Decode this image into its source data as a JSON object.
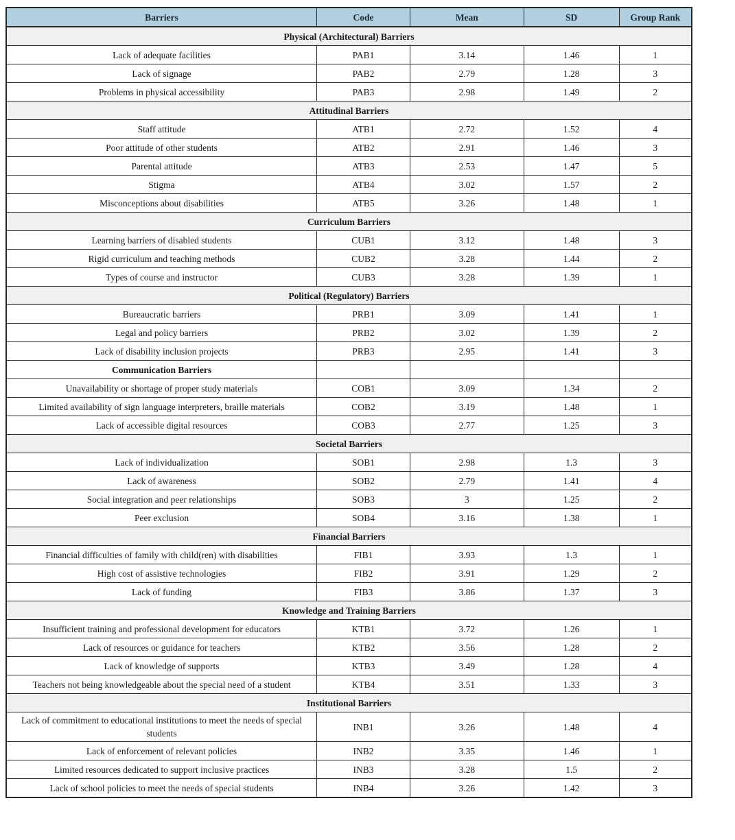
{
  "table": {
    "columns": [
      "Barriers",
      "Code",
      "Mean",
      "SD",
      "Group Rank"
    ],
    "colors": {
      "header_bg": "#b2cfe0",
      "header_text": "#1b2a38",
      "section_bg": "#f0f0ee",
      "border": "#262626",
      "body_text": "#1a1a1a"
    },
    "groups": [
      {
        "section": "Physical (Architectural) Barriers",
        "section_style": "banner",
        "rows": [
          {
            "barrier": "Lack of adequate facilities",
            "code": "PAB1",
            "mean": "3.14",
            "sd": "1.46",
            "rank": "1"
          },
          {
            "barrier": "Lack of signage",
            "code": "PAB2",
            "mean": "2.79",
            "sd": "1.28",
            "rank": "3"
          },
          {
            "barrier": "Problems in physical accessibility",
            "code": "PAB3",
            "mean": "2.98",
            "sd": "1.49",
            "rank": "2"
          }
        ]
      },
      {
        "section": "Attitudinal Barriers",
        "section_style": "banner",
        "rows": [
          {
            "barrier": "Staff attitude",
            "code": "ATB1",
            "mean": "2.72",
            "sd": "1.52",
            "rank": "4"
          },
          {
            "barrier": "Poor attitude of other students",
            "code": "ATB2",
            "mean": "2.91",
            "sd": "1.46",
            "rank": "3"
          },
          {
            "barrier": "Parental attitude",
            "code": "ATB3",
            "mean": "2.53",
            "sd": "1.47",
            "rank": "5"
          },
          {
            "barrier": "Stigma",
            "code": "ATB4",
            "mean": "3.02",
            "sd": "1.57",
            "rank": "2"
          },
          {
            "barrier": "Misconceptions about disabilities",
            "code": "ATB5",
            "mean": "3.26",
            "sd": "1.48",
            "rank": "1"
          }
        ]
      },
      {
        "section": "Curriculum Barriers",
        "section_style": "banner",
        "rows": [
          {
            "barrier": "Learning barriers of disabled students",
            "code": "CUB1",
            "mean": "3.12",
            "sd": "1.48",
            "rank": "3"
          },
          {
            "barrier": "Rigid curriculum and teaching methods",
            "code": "CUB2",
            "mean": "3.28",
            "sd": "1.44",
            "rank": "2"
          },
          {
            "barrier": "Types of course and instructor",
            "code": "CUB3",
            "mean": "3.28",
            "sd": "1.39",
            "rank": "1"
          }
        ]
      },
      {
        "section": "Political (Regulatory) Barriers",
        "section_style": "banner",
        "rows": [
          {
            "barrier": "Bureaucratic barriers",
            "code": "PRB1",
            "mean": "3.09",
            "sd": "1.41",
            "rank": "1"
          },
          {
            "barrier": "Legal and policy barriers",
            "code": "PRB2",
            "mean": "3.02",
            "sd": "1.39",
            "rank": "2"
          },
          {
            "barrier": "Lack of disability inclusion projects",
            "code": "PRB3",
            "mean": "2.95",
            "sd": "1.41",
            "rank": "3"
          }
        ]
      },
      {
        "section": "Communication Barriers",
        "section_style": "inline",
        "rows": [
          {
            "barrier": "Unavailability or shortage of proper study materials",
            "code": "COB1",
            "mean": "3.09",
            "sd": "1.34",
            "rank": "2"
          },
          {
            "barrier": "Limited availability of sign language interpreters, braille materials",
            "code": "COB2",
            "mean": "3.19",
            "sd": "1.48",
            "rank": "1"
          },
          {
            "barrier": "Lack of accessible digital resources",
            "code": "COB3",
            "mean": "2.77",
            "sd": "1.25",
            "rank": "3"
          }
        ]
      },
      {
        "section": "Societal Barriers",
        "section_style": "banner",
        "rows": [
          {
            "barrier": "Lack of individualization",
            "code": "SOB1",
            "mean": "2.98",
            "sd": "1.3",
            "rank": "3"
          },
          {
            "barrier": "Lack of awareness",
            "code": "SOB2",
            "mean": "2.79",
            "sd": "1.41",
            "rank": "4"
          },
          {
            "barrier": "Social integration and peer relationships",
            "code": "SOB3",
            "mean": "3",
            "sd": "1.25",
            "rank": "2"
          },
          {
            "barrier": "Peer exclusion",
            "code": "SOB4",
            "mean": "3.16",
            "sd": "1.38",
            "rank": "1"
          }
        ]
      },
      {
        "section": "Financial Barriers",
        "section_style": "banner",
        "rows": [
          {
            "barrier": "Financial difficulties of family with child(ren) with disabilities",
            "code": "FIB1",
            "mean": "3.93",
            "sd": "1.3",
            "rank": "1"
          },
          {
            "barrier": "High cost of assistive technologies",
            "code": "FIB2",
            "mean": "3.91",
            "sd": "1.29",
            "rank": "2"
          },
          {
            "barrier": "Lack of funding",
            "code": "FIB3",
            "mean": "3.86",
            "sd": "1.37",
            "rank": "3"
          }
        ]
      },
      {
        "section": "Knowledge and Training Barriers",
        "section_style": "banner",
        "rows": [
          {
            "barrier": "Insufficient training and professional development for educators",
            "code": "KTB1",
            "mean": "3.72",
            "sd": "1.26",
            "rank": "1"
          },
          {
            "barrier": "Lack of resources or guidance for teachers",
            "code": "KTB2",
            "mean": "3.56",
            "sd": "1.28",
            "rank": "2"
          },
          {
            "barrier": "Lack of knowledge of supports",
            "code": "KTB3",
            "mean": "3.49",
            "sd": "1.28",
            "rank": "4"
          },
          {
            "barrier": "Teachers not being knowledgeable about the special need of a student",
            "code": "KTB4",
            "mean": "3.51",
            "sd": "1.33",
            "rank": "3",
            "justify": true
          }
        ]
      },
      {
        "section": "Institutional Barriers",
        "section_style": "banner",
        "rows": [
          {
            "barrier": "Lack of commitment to educational institutions to meet the needs of special students",
            "code": "INB1",
            "mean": "3.26",
            "sd": "1.48",
            "rank": "4"
          },
          {
            "barrier": "Lack of enforcement of relevant policies",
            "code": "INB2",
            "mean": "3.35",
            "sd": "1.46",
            "rank": "1"
          },
          {
            "barrier": "Limited resources dedicated to support inclusive practices",
            "code": "INB3",
            "mean": "3.28",
            "sd": "1.5",
            "rank": "2"
          },
          {
            "barrier": "Lack of school policies to meet the needs of special students",
            "code": "INB4",
            "mean": "3.26",
            "sd": "1.42",
            "rank": "3"
          }
        ]
      }
    ]
  }
}
